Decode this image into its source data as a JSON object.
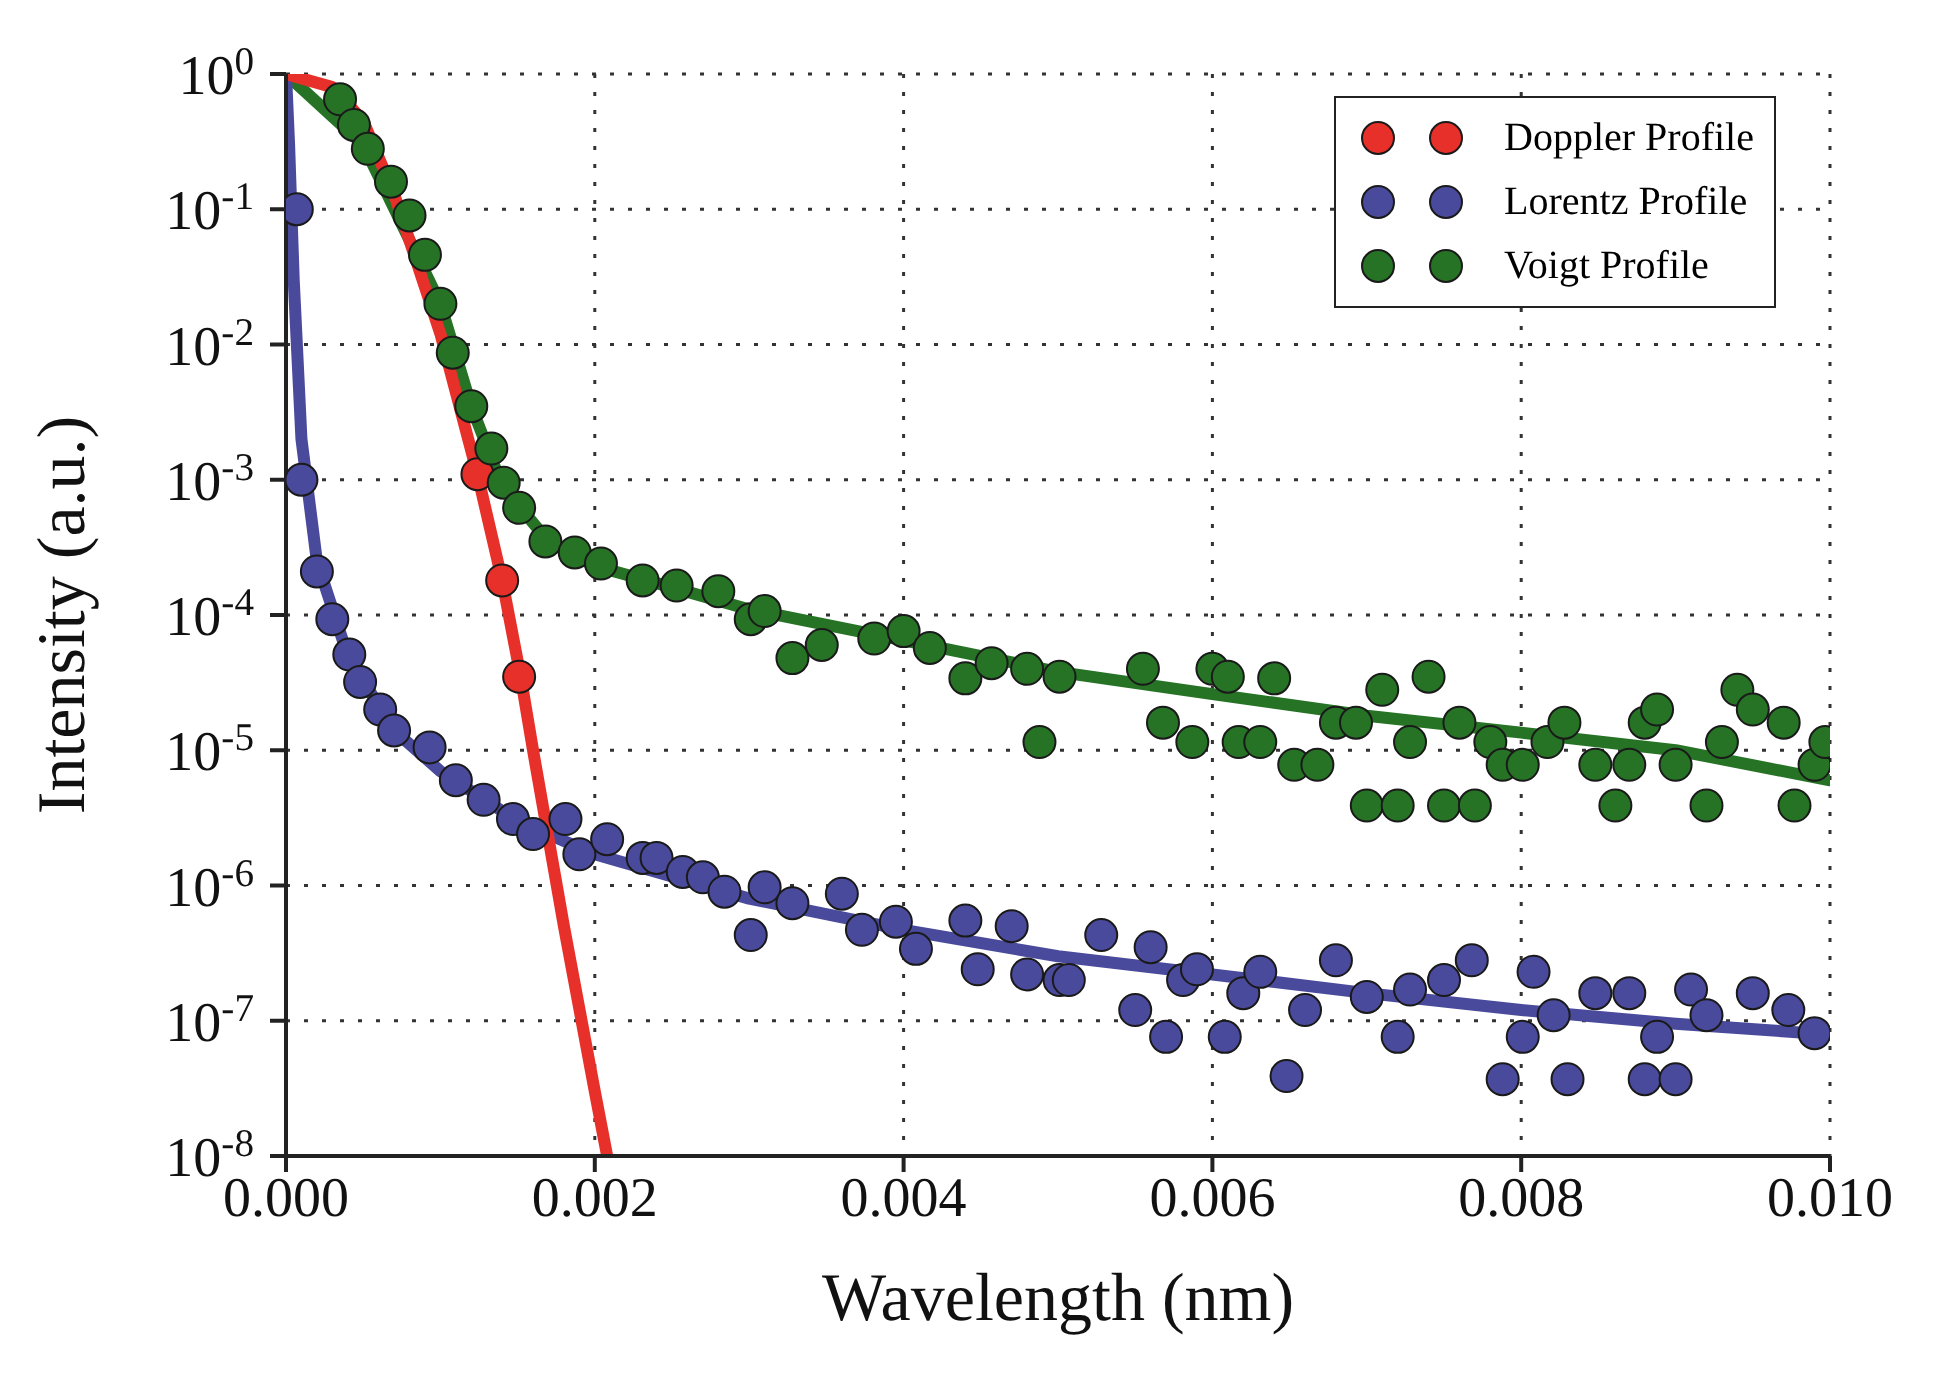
{
  "chart_data": {
    "type": "scatter",
    "xlabel": "Wavelength (nm)",
    "ylabel": "Intensity (a.u.)",
    "xlim": [
      0,
      0.01
    ],
    "xticks": [
      {
        "value": 0,
        "label": "0.000"
      },
      {
        "value": 0.002,
        "label": "0.002"
      },
      {
        "value": 0.004,
        "label": "0.004"
      },
      {
        "value": 0.006,
        "label": "0.006"
      },
      {
        "value": 0.008,
        "label": "0.008"
      },
      {
        "value": 0.01,
        "label": "0.010"
      }
    ],
    "ylim": [
      1e-08,
      1
    ],
    "log": "y",
    "yticks": [
      {
        "value": 1,
        "label": "10$^{0}$"
      },
      {
        "value": 0.1,
        "label": "10$^{-1}$"
      },
      {
        "value": 0.01,
        "label": "10$^{-2}$"
      },
      {
        "value": 0.001,
        "label": "10$^{-3}$"
      },
      {
        "value": 0.0001,
        "label": "10$^{-4}$"
      },
      {
        "value": 1e-05,
        "label": "10$^{-5}$"
      },
      {
        "value": 1e-06,
        "label": "10$^{-6}$"
      },
      {
        "value": 1e-07,
        "label": "10$^{-7}$"
      },
      {
        "value": 1e-08,
        "label": "10$^{-8}$"
      }
    ],
    "grid": true,
    "legend": "top right",
    "line_style": "solid",
    "series": [
      {
        "name": "Doppler Profile",
        "marker": "circle",
        "color": "#e8302a",
        "x": [
          0.00124,
          0.0014,
          0.00151
        ],
        "values": [
          0.0011,
          0.00018,
          3.5e-05
        ]
      },
      {
        "name": "Lorentz Profile",
        "marker": "circle",
        "color": "#4a4a9c",
        "x": [
          7e-05,
          0.0001,
          0.0002,
          0.0003,
          0.00041,
          0.00048,
          0.00061,
          0.0007,
          0.00093,
          0.0011,
          0.00128,
          0.00147,
          0.0016,
          0.00181,
          0.0019,
          0.00208,
          0.00231,
          0.0024,
          0.00257,
          0.0027,
          0.00284,
          0.00301,
          0.0031,
          0.00328,
          0.0036,
          0.00373,
          0.00395,
          0.00408,
          0.0044,
          0.00448,
          0.0047,
          0.0048,
          0.00501,
          0.00507,
          0.00528,
          0.0055,
          0.0056,
          0.0057,
          0.00581,
          0.0059,
          0.00608,
          0.0062,
          0.00631,
          0.00648,
          0.0066,
          0.0068,
          0.007,
          0.0072,
          0.00728,
          0.0075,
          0.00768,
          0.00788,
          0.00801,
          0.00808,
          0.00821,
          0.0083,
          0.00848,
          0.0087,
          0.0088,
          0.00888,
          0.009,
          0.0091,
          0.0092,
          0.0095,
          0.00973,
          0.0099
        ],
        "values": [
          0.1,
          0.001,
          0.00021,
          9.3e-05,
          5.1e-05,
          3.2e-05,
          2e-05,
          1.4e-05,
          1.05e-05,
          6e-06,
          4.3e-06,
          3.1e-06,
          2.4e-06,
          3.1e-06,
          1.7e-06,
          2.2e-06,
          1.6e-06,
          1.6e-06,
          1.26e-06,
          1.15e-06,
          9e-07,
          4.3e-07,
          9.7e-07,
          7.4e-07,
          8.7e-07,
          4.7e-07,
          5.4e-07,
          3.4e-07,
          5.5e-07,
          2.4e-07,
          5e-07,
          2.2e-07,
          2e-07,
          2e-07,
          4.3e-07,
          1.2e-07,
          3.5e-07,
          7.6e-08,
          2e-07,
          2.4e-07,
          7.6e-08,
          1.6e-07,
          2.3e-07,
          3.9e-08,
          1.2e-07,
          2.8e-07,
          1.5e-07,
          7.6e-08,
          1.7e-07,
          2e-07,
          2.8e-07,
          3.7e-08,
          7.6e-08,
          2.3e-07,
          1.1e-07,
          3.7e-08,
          1.6e-07,
          1.6e-07,
          3.7e-08,
          7.6e-08,
          3.7e-08,
          1.7e-07,
          1.1e-07,
          1.6e-07,
          1.2e-07,
          8.1e-08
        ]
      },
      {
        "name": "Voigt Profile",
        "marker": "circle",
        "color": "#267326",
        "x": [
          0.00035,
          0.00044,
          0.00053,
          0.00068,
          0.0008,
          0.0009,
          0.001,
          0.00108,
          0.0012,
          0.00133,
          0.00141,
          0.00151,
          0.00168,
          0.00187,
          0.00204,
          0.00231,
          0.00253,
          0.0028,
          0.00301,
          0.0031,
          0.00328,
          0.00347,
          0.00381,
          0.004,
          0.00417,
          0.0044,
          0.00457,
          0.0048,
          0.00488,
          0.00501,
          0.00555,
          0.00568,
          0.00587,
          0.006,
          0.0061,
          0.00617,
          0.00631,
          0.0064,
          0.00653,
          0.00668,
          0.0068,
          0.00693,
          0.007,
          0.0071,
          0.0072,
          0.00728,
          0.0074,
          0.0075,
          0.0076,
          0.0077,
          0.0078,
          0.00788,
          0.00801,
          0.00817,
          0.00828,
          0.00848,
          0.00861,
          0.0087,
          0.0088,
          0.00888,
          0.009,
          0.0092,
          0.0093,
          0.0094,
          0.0095,
          0.0097,
          0.00977,
          0.0099,
          0.00997
        ],
        "values": [
          0.65,
          0.42,
          0.28,
          0.16,
          0.09,
          0.046,
          0.02,
          0.0087,
          0.0035,
          0.0017,
          0.00095,
          0.00062,
          0.00035,
          0.00029,
          0.00024,
          0.00018,
          0.000165,
          0.00015,
          9.3e-05,
          0.000107,
          4.8e-05,
          6e-05,
          6.7e-05,
          7.6e-05,
          5.7e-05,
          3.4e-05,
          4.4e-05,
          4e-05,
          1.15e-05,
          3.5e-05,
          4e-05,
          1.6e-05,
          1.15e-05,
          4e-05,
          3.5e-05,
          1.15e-05,
          1.15e-05,
          3.4e-05,
          7.8e-06,
          7.8e-06,
          1.6e-05,
          1.6e-05,
          3.9e-06,
          2.8e-05,
          3.9e-06,
          1.15e-05,
          3.5e-05,
          3.9e-06,
          1.6e-05,
          3.9e-06,
          1.15e-05,
          7.8e-06,
          7.8e-06,
          1.15e-05,
          1.6e-05,
          7.8e-06,
          3.9e-06,
          7.8e-06,
          1.6e-05,
          2e-05,
          7.8e-06,
          3.9e-06,
          1.15e-05,
          2.8e-05,
          2e-05,
          1.6e-05,
          3.9e-06,
          7.8e-06,
          1.15e-05
        ]
      },
      {
        "type": "line",
        "marker": "none",
        "color": "#267326",
        "x": [
          0,
          0.0005,
          0.001,
          0.0012,
          0.0014,
          0.0017,
          0.002,
          0.0025,
          0.003,
          0.004,
          0.005,
          0.006,
          0.007,
          0.008,
          0.009,
          0.01
        ],
        "values": [
          1,
          0.3,
          0.02,
          0.0035,
          0.0009,
          0.00035,
          0.00023,
          0.00016,
          0.00011,
          6.5e-05,
          3.8e-05,
          2.6e-05,
          1.8e-05,
          1.35e-05,
          1e-05,
          6e-06
        ]
      },
      {
        "type": "line",
        "marker": "none",
        "color": "#4a4a9c",
        "x": [
          0,
          2e-05,
          5e-05,
          0.0001,
          0.0002,
          0.0004,
          0.0007,
          0.001,
          0.0015,
          0.002,
          0.003,
          0.004,
          0.005,
          0.006,
          0.007,
          0.008,
          0.009,
          0.01
        ],
        "values": [
          1,
          0.3,
          0.03,
          0.002,
          0.00025,
          5e-05,
          1.4e-05,
          7e-06,
          3e-06,
          1.7e-06,
          8e-07,
          4.7e-07,
          3e-07,
          2.2e-07,
          1.6e-07,
          1.2e-07,
          9.5e-08,
          7.9e-08
        ]
      },
      {
        "type": "line",
        "marker": "none",
        "color": "#e8302a",
        "x": [
          0,
          0.0003,
          0.0005,
          0.0007,
          0.001,
          0.00124,
          0.0014,
          0.00152,
          0.0016,
          0.0018,
          0.002,
          0.00208
        ],
        "values": [
          1,
          0.8,
          0.45,
          0.13,
          0.012,
          0.0011,
          0.00018,
          3.5e-05,
          1e-05,
          5e-07,
          3e-08,
          1e-08
        ]
      }
    ]
  }
}
